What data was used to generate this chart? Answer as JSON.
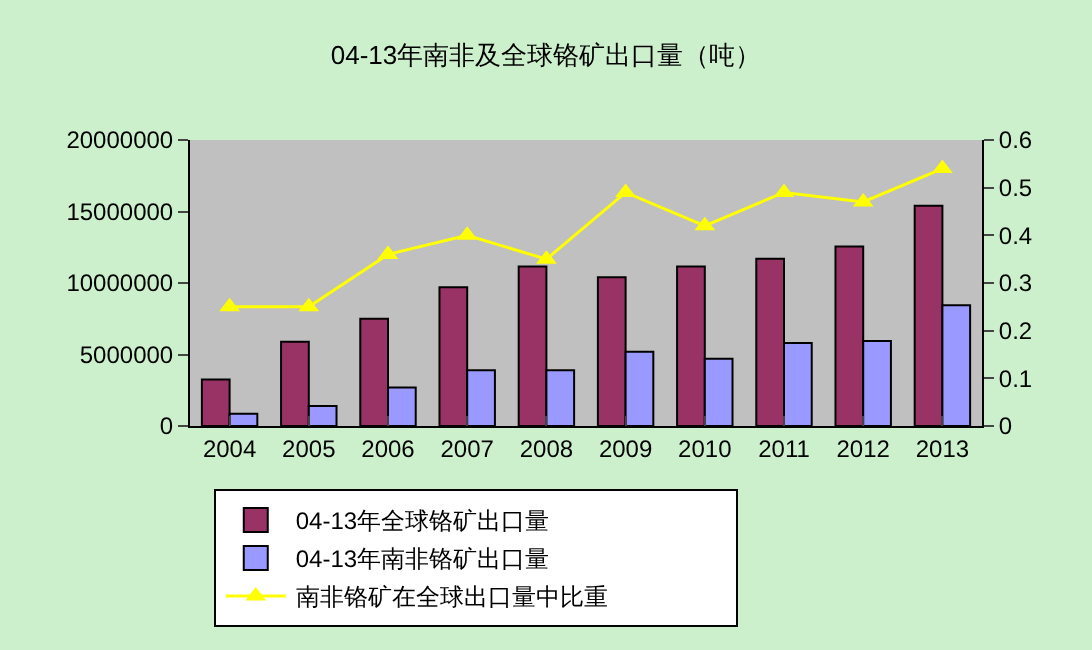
{
  "chart_data": {
    "type": "bar",
    "title": "04-13年南非及全球铬矿出口量（吨）",
    "categories": [
      "2004",
      "2005",
      "2006",
      "2007",
      "2008",
      "2009",
      "2010",
      "2011",
      "2012",
      "2013"
    ],
    "series": [
      {
        "name": "04-13年全球铬矿出口量",
        "color": "#993366",
        "values": [
          3250000,
          5900000,
          7500000,
          9700000,
          11150000,
          10400000,
          11150000,
          11700000,
          12550000,
          15400000
        ]
      },
      {
        "name": "04-13年南非铬矿出口量",
        "color": "#9999ff",
        "values": [
          850000,
          1400000,
          2700000,
          3900000,
          3900000,
          5200000,
          4700000,
          5800000,
          5950000,
          8450000
        ]
      },
      {
        "name": "南非铬矿在全球出口量中比重",
        "type": "line",
        "axis": "y2",
        "color": "#ffff00",
        "marker": "triangle",
        "values": [
          0.25,
          0.25,
          0.36,
          0.4,
          0.35,
          0.49,
          0.42,
          0.49,
          0.47,
          0.54
        ]
      }
    ],
    "ylim": [
      0,
      20000000
    ],
    "yticks": [
      0,
      5000000,
      10000000,
      15000000,
      20000000
    ],
    "y2lim": [
      0,
      0.6
    ],
    "y2ticks": [
      0,
      {
        "value": 0.1,
        "label": "0.1"
      },
      {
        "value": 0.2,
        "label": "0.2"
      },
      {
        "value": 0.3,
        "label": "0.3"
      },
      {
        "value": 0.4,
        "label": "0.4"
      },
      {
        "value": 0.5,
        "label": "0.5"
      },
      {
        "value": 0.6,
        "label": "0.6"
      }
    ],
    "grid": false,
    "legend": "bottom"
  }
}
